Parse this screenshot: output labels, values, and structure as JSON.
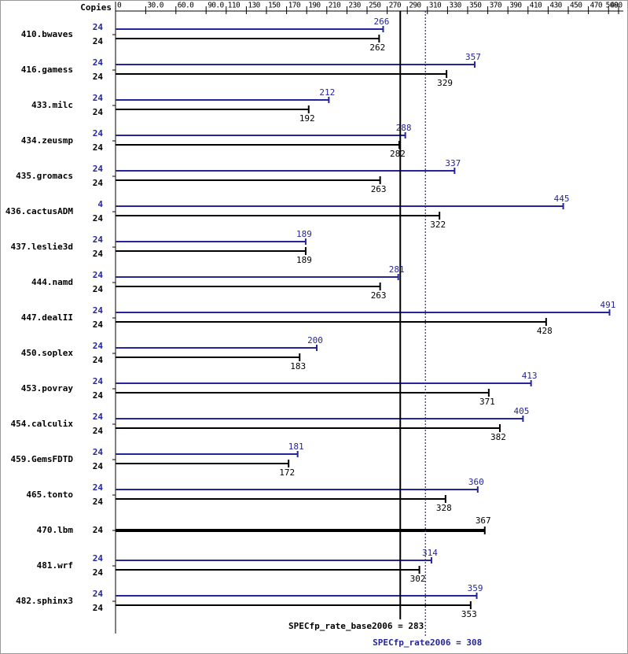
{
  "chart_data": {
    "type": "bar",
    "orientation": "horizontal",
    "x_axis_label": "Copies",
    "categories": [
      "410.bwaves",
      "416.gamess",
      "433.milc",
      "434.zeusmp",
      "435.gromacs",
      "436.cactusADM",
      "437.leslie3d",
      "444.namd",
      "447.dealII",
      "450.soplex",
      "453.povray",
      "454.calculix",
      "459.GemsFDTD",
      "465.tonto",
      "470.lbm",
      "481.wrf",
      "482.sphinx3"
    ],
    "series": [
      {
        "color": "#25259a",
        "copies": [
          24,
          24,
          24,
          24,
          24,
          4,
          24,
          24,
          24,
          24,
          24,
          24,
          24,
          24,
          null,
          24,
          24
        ],
        "values": [
          266,
          357,
          212,
          288,
          337,
          445,
          189,
          281,
          491,
          200,
          413,
          405,
          181,
          360,
          null,
          314,
          359
        ]
      },
      {
        "color": "#000000",
        "copies": [
          24,
          24,
          24,
          24,
          24,
          24,
          24,
          24,
          24,
          24,
          24,
          24,
          24,
          24,
          24,
          24,
          24
        ],
        "values": [
          262,
          329,
          192,
          282,
          263,
          322,
          189,
          263,
          428,
          183,
          371,
          382,
          172,
          328,
          367,
          302,
          353
        ]
      }
    ],
    "xlim": [
      0,
      500
    ],
    "xticks": [
      0,
      {
        "value": 30,
        "label": "30.0"
      },
      {
        "value": 60,
        "label": "60.0"
      },
      {
        "value": 90,
        "label": "90.0"
      },
      110,
      130,
      150,
      170,
      190,
      210,
      230,
      250,
      270,
      290,
      310,
      330,
      350,
      370,
      390,
      410,
      430,
      450,
      470,
      490,
      500
    ],
    "reference_lines": [
      {
        "value": 283,
        "label": "SPECfp_rate_base2006 = 283",
        "color": "#000000",
        "style": "solid"
      },
      {
        "value": 308,
        "label": "SPECfp_rate2006 = 308",
        "color": "#25259a",
        "style": "dotted"
      }
    ]
  }
}
